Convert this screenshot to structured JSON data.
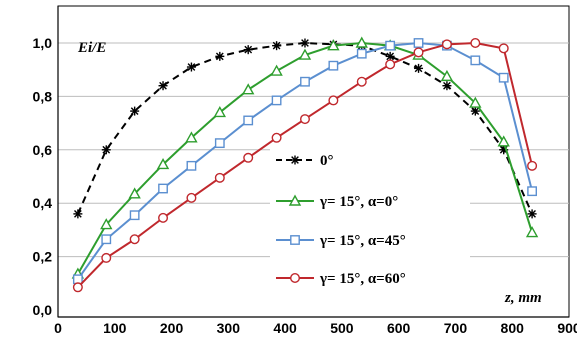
{
  "chart_data": {
    "type": "line",
    "xlabel": "z, mm",
    "ylabel": "Ei/E",
    "xlim": [
      0,
      900
    ],
    "ylim": [
      0.0,
      1.0
    ],
    "x_ticks": [
      "0",
      "100",
      "200",
      "300",
      "400",
      "500",
      "600",
      "700",
      "800",
      "900"
    ],
    "y_ticks": [
      "0,0",
      "0,2",
      "0,4",
      "0,6",
      "0,8",
      "1,0"
    ],
    "grid": "horizontal",
    "legend_position": "right",
    "series": [
      {
        "name": "0°",
        "color": "#000000",
        "style": "dashed",
        "marker": "asterisk",
        "x": [
          35,
          85,
          135,
          185,
          235,
          285,
          335,
          385,
          435,
          485,
          535,
          585,
          635,
          685,
          735,
          785,
          835
        ],
        "y": [
          0.36,
          0.6,
          0.745,
          0.84,
          0.91,
          0.95,
          0.975,
          0.99,
          1.0,
          0.995,
          0.99,
          0.95,
          0.905,
          0.84,
          0.745,
          0.6,
          0.36
        ]
      },
      {
        "name": "γ= 15°, α=0°",
        "color": "#2e9e2e",
        "style": "solid",
        "marker": "triangle",
        "x": [
          35,
          85,
          135,
          185,
          235,
          285,
          335,
          385,
          435,
          485,
          535,
          585,
          635,
          685,
          735,
          785,
          835
        ],
        "y": [
          0.135,
          0.32,
          0.435,
          0.545,
          0.645,
          0.74,
          0.825,
          0.895,
          0.955,
          0.99,
          1.0,
          0.99,
          0.955,
          0.875,
          0.775,
          0.63,
          0.29
        ]
      },
      {
        "name": "γ= 15°, α=45°",
        "color": "#5b8fd0",
        "style": "solid",
        "marker": "square",
        "x": [
          35,
          85,
          135,
          185,
          235,
          285,
          335,
          385,
          435,
          485,
          535,
          585,
          635,
          685,
          735,
          785,
          835
        ],
        "y": [
          0.115,
          0.265,
          0.355,
          0.455,
          0.54,
          0.625,
          0.71,
          0.785,
          0.855,
          0.915,
          0.96,
          0.99,
          1.0,
          0.99,
          0.935,
          0.87,
          0.445
        ]
      },
      {
        "name": "γ= 15°, α=60°",
        "color": "#c0282d",
        "style": "solid",
        "marker": "circle",
        "x": [
          35,
          85,
          135,
          185,
          235,
          285,
          335,
          385,
          435,
          485,
          535,
          585,
          635,
          685,
          735,
          785,
          835
        ],
        "y": [
          0.085,
          0.195,
          0.265,
          0.345,
          0.42,
          0.495,
          0.57,
          0.645,
          0.715,
          0.785,
          0.855,
          0.92,
          0.965,
          0.995,
          1.0,
          0.98,
          0.54
        ]
      }
    ]
  }
}
